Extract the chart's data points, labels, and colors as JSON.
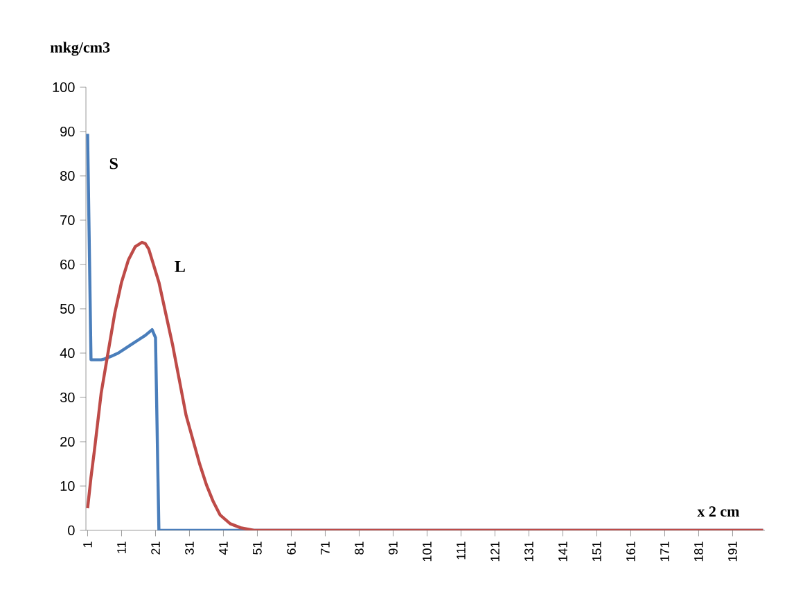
{
  "chart_data": {
    "type": "line",
    "xlabel": "x 2 cm",
    "ylabel": "mkg/cm3",
    "xlim": [
      0.5,
      200.5
    ],
    "ylim": [
      0,
      100
    ],
    "xticks": [
      1,
      11,
      21,
      31,
      41,
      51,
      61,
      71,
      81,
      91,
      101,
      111,
      121,
      131,
      141,
      151,
      161,
      171,
      181,
      191
    ],
    "yticks": [
      0,
      10,
      20,
      30,
      40,
      50,
      60,
      70,
      80,
      90,
      100
    ],
    "grid": false,
    "legend": false,
    "marker": "none",
    "line_style": "solid",
    "series": [
      {
        "name": "S",
        "color": "#4a7ebb",
        "x": [
          1,
          2,
          3,
          4,
          5,
          6,
          7,
          8,
          10,
          12,
          14,
          16,
          18,
          20,
          21,
          22,
          200
        ],
        "values": [
          89.5,
          38.5,
          38.5,
          38.5,
          38.5,
          38.7,
          39,
          39.3,
          40,
          41,
          42,
          43,
          44,
          45.3,
          43.5,
          0,
          0
        ]
      },
      {
        "name": "L",
        "color": "#be4b48",
        "x": [
          1,
          2,
          3,
          5,
          7,
          9,
          11,
          13,
          15,
          17,
          18,
          19,
          20,
          22,
          24,
          26,
          28,
          30,
          32,
          34,
          36,
          38,
          40,
          43,
          46,
          50,
          200
        ],
        "values": [
          5,
          12,
          18,
          31,
          40,
          49,
          56,
          61,
          64,
          65,
          64.7,
          63.5,
          61,
          56,
          49,
          42,
          34,
          26,
          20.5,
          15,
          10.3,
          6.5,
          3.5,
          1.5,
          0.6,
          0,
          0
        ]
      }
    ]
  }
}
